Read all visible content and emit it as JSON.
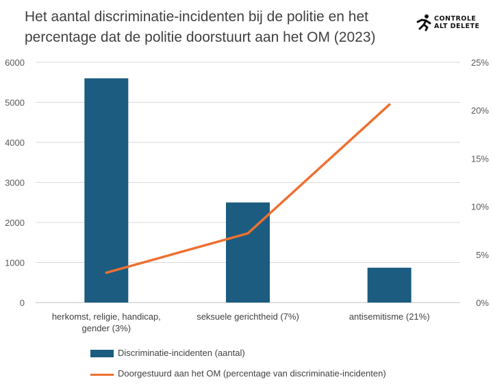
{
  "header": {
    "title": "Het aantal discriminatie-incidenten bij de politie en het percentage dat de politie doorstuurt aan het OM (2023)",
    "logo_line1": "CONTROLE",
    "logo_line2": "ALT DELETE"
  },
  "chart_data": {
    "type": "bar",
    "categories": [
      [
        "herkomst, religie, handicap,",
        "gender (3%)"
      ],
      [
        "seksuele gerichtheid (7%)"
      ],
      [
        "antisemitisme (21%)"
      ]
    ],
    "series": [
      {
        "name": "Discriminatie-incidenten (aantal)",
        "type": "bar",
        "axis": "left",
        "values": [
          5600,
          2500,
          870
        ],
        "color": "#1b5c80"
      },
      {
        "name": "Doorgestuurd aan het OM (percentage van discriminatie-incidenten)",
        "type": "line",
        "axis": "right",
        "values": [
          3.1,
          7.2,
          20.6
        ],
        "color": "#ee7030"
      }
    ],
    "y_left": {
      "min": 0,
      "max": 6000,
      "ticks": [
        0,
        1000,
        2000,
        3000,
        4000,
        5000,
        6000
      ]
    },
    "y_right": {
      "min": 0,
      "max": 25,
      "ticks": [
        "0%",
        "5%",
        "10%",
        "15%",
        "20%",
        "25%"
      ]
    },
    "grid": true,
    "legend_position": "bottom"
  }
}
